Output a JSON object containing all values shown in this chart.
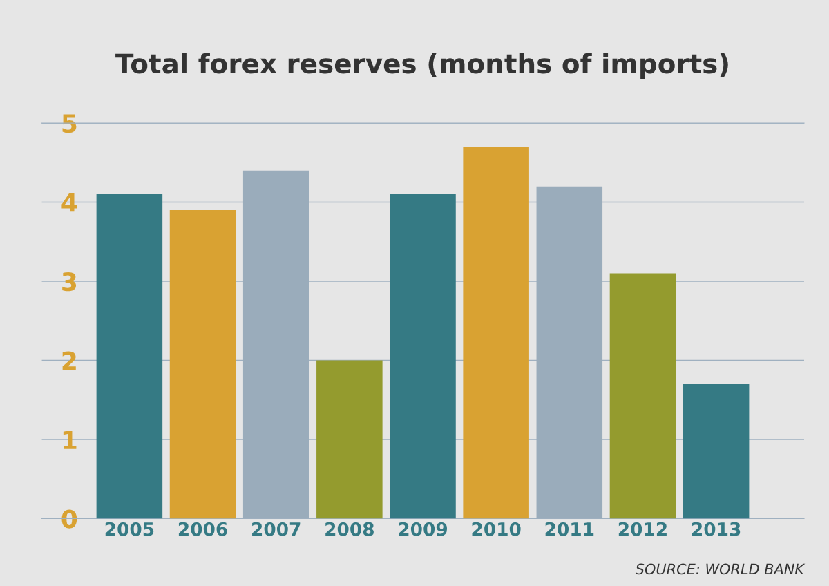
{
  "chart_data": {
    "type": "bar",
    "title": "Total forex reserves (months of imports)",
    "categories": [
      "2005",
      "2006",
      "2007",
      "2008",
      "2009",
      "2010",
      "2011",
      "2012",
      "2013"
    ],
    "values": [
      4.1,
      3.9,
      4.4,
      2.0,
      4.1,
      4.7,
      4.2,
      3.1,
      1.7
    ],
    "colors": [
      "#357a84",
      "#d9a232",
      "#9aacbb",
      "#949b2e",
      "#357a84",
      "#d9a232",
      "#9aacbb",
      "#949b2e",
      "#357a84"
    ],
    "ylim": [
      0,
      5
    ],
    "yticks": [
      0,
      1,
      2,
      3,
      4,
      5
    ],
    "grid": "y",
    "annotations": [
      "SOURCE: WORLD BANK"
    ]
  }
}
